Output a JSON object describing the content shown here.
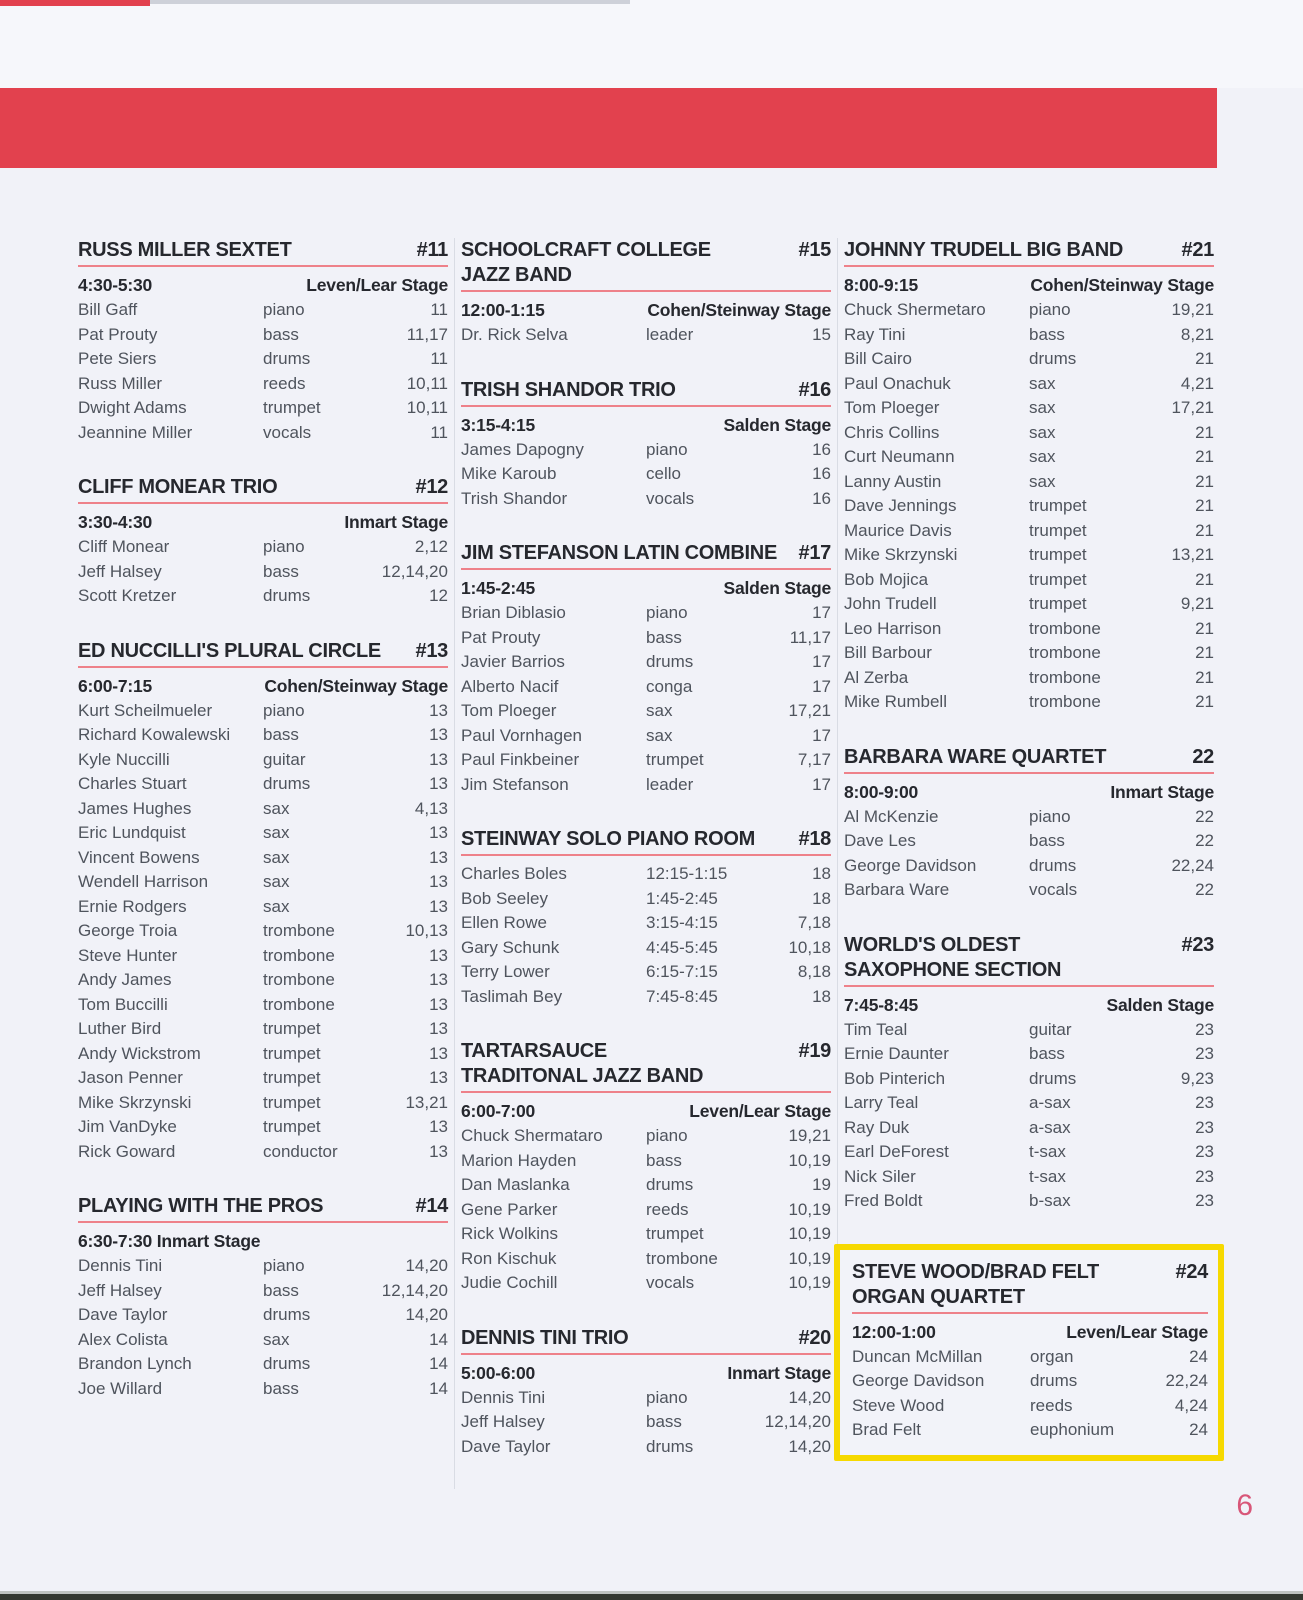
{
  "page": {
    "number": "6",
    "accent_red": "#e2414e",
    "underline_pink": "#ee818a",
    "highlight_yellow": "#f6d900",
    "page_number_color": "#d85678"
  },
  "columns": [
    {
      "sections": [
        {
          "title_lines": [
            "RUSS MILLER SEXTET"
          ],
          "number": "#11",
          "time": "4:30-5:30",
          "stage": "Leven/Lear Stage",
          "rows": [
            [
              "Bill Gaff",
              "piano",
              "11"
            ],
            [
              "Pat Prouty",
              "bass",
              "11,17"
            ],
            [
              "Pete Siers",
              "drums",
              "11"
            ],
            [
              "Russ Miller",
              "reeds",
              "10,11"
            ],
            [
              "Dwight Adams",
              "trumpet",
              "10,11"
            ],
            [
              "Jeannine Miller",
              "vocals",
              "11"
            ]
          ]
        },
        {
          "title_lines": [
            "CLIFF MONEAR TRIO"
          ],
          "number": "#12",
          "time": "3:30-4:30",
          "stage": "Inmart Stage",
          "rows": [
            [
              "Cliff Monear",
              "piano",
              "2,12"
            ],
            [
              "Jeff Halsey",
              "bass",
              "12,14,20"
            ],
            [
              "Scott Kretzer",
              "drums",
              "12"
            ]
          ]
        },
        {
          "title_lines": [
            "ED NUCCILLI'S PLURAL CIRCLE"
          ],
          "number": "#13",
          "time": "6:00-7:15",
          "stage": "Cohen/Steinway Stage",
          "rows": [
            [
              "Kurt Scheilmueler",
              "piano",
              "13"
            ],
            [
              "Richard Kowalewski",
              "bass",
              "13"
            ],
            [
              "Kyle Nuccilli",
              "guitar",
              "13"
            ],
            [
              "Charles Stuart",
              "drums",
              "13"
            ],
            [
              "James Hughes",
              "sax",
              "4,13"
            ],
            [
              "Eric Lundquist",
              "sax",
              "13"
            ],
            [
              "Vincent Bowens",
              "sax",
              "13"
            ],
            [
              "Wendell Harrison",
              "sax",
              "13"
            ],
            [
              "Ernie Rodgers",
              "sax",
              "13"
            ],
            [
              "George Troia",
              "trombone",
              "10,13"
            ],
            [
              "Steve Hunter",
              "trombone",
              "13"
            ],
            [
              "Andy James",
              "trombone",
              "13"
            ],
            [
              "Tom Buccilli",
              "trombone",
              "13"
            ],
            [
              "Luther Bird",
              "trumpet",
              "13"
            ],
            [
              "Andy Wickstrom",
              "trumpet",
              "13"
            ],
            [
              "Jason Penner",
              "trumpet",
              "13"
            ],
            [
              "Mike Skrzynski",
              "trumpet",
              "13,21"
            ],
            [
              "Jim VanDyke",
              "trumpet",
              "13"
            ],
            [
              "Rick Goward",
              "conductor",
              "13"
            ]
          ]
        },
        {
          "title_lines": [
            "PLAYING WITH THE PROS"
          ],
          "number": "#14",
          "header_single": "6:30-7:30 Inmart Stage",
          "rows": [
            [
              "Dennis Tini",
              "piano",
              "14,20"
            ],
            [
              "Jeff Halsey",
              "bass",
              "12,14,20"
            ],
            [
              "Dave Taylor",
              "drums",
              "14,20"
            ],
            [
              "Alex Colista",
              "sax",
              "14"
            ],
            [
              "Brandon Lynch",
              "drums",
              "14"
            ],
            [
              "Joe Willard",
              "bass",
              "14"
            ]
          ]
        }
      ]
    },
    {
      "sections": [
        {
          "title_lines": [
            "SCHOOLCRAFT COLLEGE",
            "JAZZ BAND"
          ],
          "number": "#15",
          "time": "12:00-1:15",
          "stage": "Cohen/Steinway Stage",
          "rows": [
            [
              "Dr. Rick Selva",
              "leader",
              "15"
            ]
          ]
        },
        {
          "title_lines": [
            "TRISH SHANDOR TRIO"
          ],
          "number": "#16",
          "time": "3:15-4:15",
          "stage": "Salden Stage",
          "rows": [
            [
              "James Dapogny",
              "piano",
              "16"
            ],
            [
              "Mike Karoub",
              "cello",
              "16"
            ],
            [
              "Trish Shandor",
              "vocals",
              "16"
            ]
          ]
        },
        {
          "title_lines": [
            "JIM STEFANSON LATIN COMBINE"
          ],
          "number": "#17",
          "time": "1:45-2:45",
          "stage": "Salden Stage",
          "rows": [
            [
              "Brian Diblasio",
              "piano",
              "17"
            ],
            [
              "Pat Prouty",
              "bass",
              "11,17"
            ],
            [
              "Javier Barrios",
              "drums",
              "17"
            ],
            [
              "Alberto Nacif",
              "conga",
              "17"
            ],
            [
              "Tom Ploeger",
              "sax",
              "17,21"
            ],
            [
              "Paul Vornhagen",
              "sax",
              "17"
            ],
            [
              "Paul Finkbeiner",
              "trumpet",
              "7,17"
            ],
            [
              "Jim Stefanson",
              "leader",
              "17"
            ]
          ]
        },
        {
          "title_lines": [
            "STEINWAY SOLO PIANO ROOM"
          ],
          "number": "#18",
          "rows": [
            [
              "Charles Boles",
              "12:15-1:15",
              "18"
            ],
            [
              "Bob Seeley",
              "1:45-2:45",
              "18"
            ],
            [
              "Ellen Rowe",
              "3:15-4:15",
              "7,18"
            ],
            [
              "Gary Schunk",
              "4:45-5:45",
              "10,18"
            ],
            [
              "Terry Lower",
              "6:15-7:15",
              "8,18"
            ],
            [
              "Taslimah Bey",
              "7:45-8:45",
              "18"
            ]
          ]
        },
        {
          "title_lines": [
            "TARTARSAUCE",
            "TRADITONAL JAZZ BAND"
          ],
          "number": "#19",
          "time": "6:00-7:00",
          "stage": "Leven/Lear Stage",
          "rows": [
            [
              "Chuck Shermataro",
              "piano",
              "19,21"
            ],
            [
              "Marion Hayden",
              "bass",
              "10,19"
            ],
            [
              "Dan Maslanka",
              "drums",
              "19"
            ],
            [
              "Gene Parker",
              "reeds",
              "10,19"
            ],
            [
              "Rick Wolkins",
              "trumpet",
              "10,19"
            ],
            [
              "Ron Kischuk",
              "trombone",
              "10,19"
            ],
            [
              "Judie Cochill",
              "vocals",
              "10,19"
            ]
          ]
        },
        {
          "title_lines": [
            "DENNIS TINI TRIO"
          ],
          "number": "#20",
          "time": "5:00-6:00",
          "stage": "Inmart Stage",
          "rows": [
            [
              "Dennis Tini",
              "piano",
              "14,20"
            ],
            [
              "Jeff Halsey",
              "bass",
              "12,14,20"
            ],
            [
              "Dave Taylor",
              "drums",
              "14,20"
            ]
          ]
        }
      ]
    },
    {
      "sections": [
        {
          "title_lines": [
            "JOHNNY TRUDELL BIG BAND"
          ],
          "number": "#21",
          "time": "8:00-9:15",
          "stage": "Cohen/Steinway Stage",
          "rows": [
            [
              "Chuck Shermetaro",
              "piano",
              "19,21"
            ],
            [
              "Ray Tini",
              "bass",
              "8,21"
            ],
            [
              "Bill Cairo",
              "drums",
              "21"
            ],
            [
              "Paul Onachuk",
              "sax",
              "4,21"
            ],
            [
              "Tom Ploeger",
              "sax",
              "17,21"
            ],
            [
              "Chris Collins",
              "sax",
              "21"
            ],
            [
              "Curt Neumann",
              "sax",
              "21"
            ],
            [
              "Lanny Austin",
              "sax",
              "21"
            ],
            [
              "Dave Jennings",
              "trumpet",
              "21"
            ],
            [
              "Maurice Davis",
              "trumpet",
              "21"
            ],
            [
              "Mike Skrzynski",
              "trumpet",
              "13,21"
            ],
            [
              "Bob Mojica",
              "trumpet",
              "21"
            ],
            [
              "John Trudell",
              "trumpet",
              "9,21"
            ],
            [
              "Leo Harrison",
              "trombone",
              "21"
            ],
            [
              "Bill Barbour",
              "trombone",
              "21"
            ],
            [
              "Al Zerba",
              "trombone",
              "21"
            ],
            [
              "Mike Rumbell",
              "trombone",
              "21"
            ]
          ]
        },
        {
          "title_lines": [
            "BARBARA WARE QUARTET"
          ],
          "number": "22",
          "time": "8:00-9:00",
          "stage": "Inmart Stage",
          "rows": [
            [
              "Al McKenzie",
              "piano",
              "22"
            ],
            [
              "Dave Les",
              "bass",
              "22"
            ],
            [
              "George Davidson",
              "drums",
              "22,24"
            ],
            [
              "Barbara Ware",
              "vocals",
              "22"
            ]
          ]
        },
        {
          "title_lines": [
            "WORLD'S OLDEST",
            "SAXOPHONE SECTION"
          ],
          "number": "#23",
          "time": "7:45-8:45",
          "stage": "Salden Stage",
          "rows": [
            [
              "Tim Teal",
              "guitar",
              "23"
            ],
            [
              "Ernie Daunter",
              "bass",
              "23"
            ],
            [
              "Bob Pinterich",
              "drums",
              "9,23"
            ],
            [
              "Larry Teal",
              "a-sax",
              "23"
            ],
            [
              "Ray Duk",
              "a-sax",
              "23"
            ],
            [
              "Earl DeForest",
              "t-sax",
              "23"
            ],
            [
              "Nick Siler",
              "t-sax",
              "23"
            ],
            [
              "Fred Boldt",
              "b-sax",
              "23"
            ]
          ]
        },
        {
          "title_lines": [
            "STEVE WOOD/BRAD FELT",
            "ORGAN QUARTET"
          ],
          "number": "#24",
          "time": "12:00-1:00",
          "stage": "Leven/Lear Stage",
          "highlighted": true,
          "rows": [
            [
              "Duncan McMillan",
              "organ",
              "24"
            ],
            [
              "George Davidson",
              "drums",
              "22,24"
            ],
            [
              "Steve Wood",
              "reeds",
              "4,24"
            ],
            [
              "Brad Felt",
              "euphonium",
              "24"
            ]
          ]
        }
      ]
    }
  ]
}
